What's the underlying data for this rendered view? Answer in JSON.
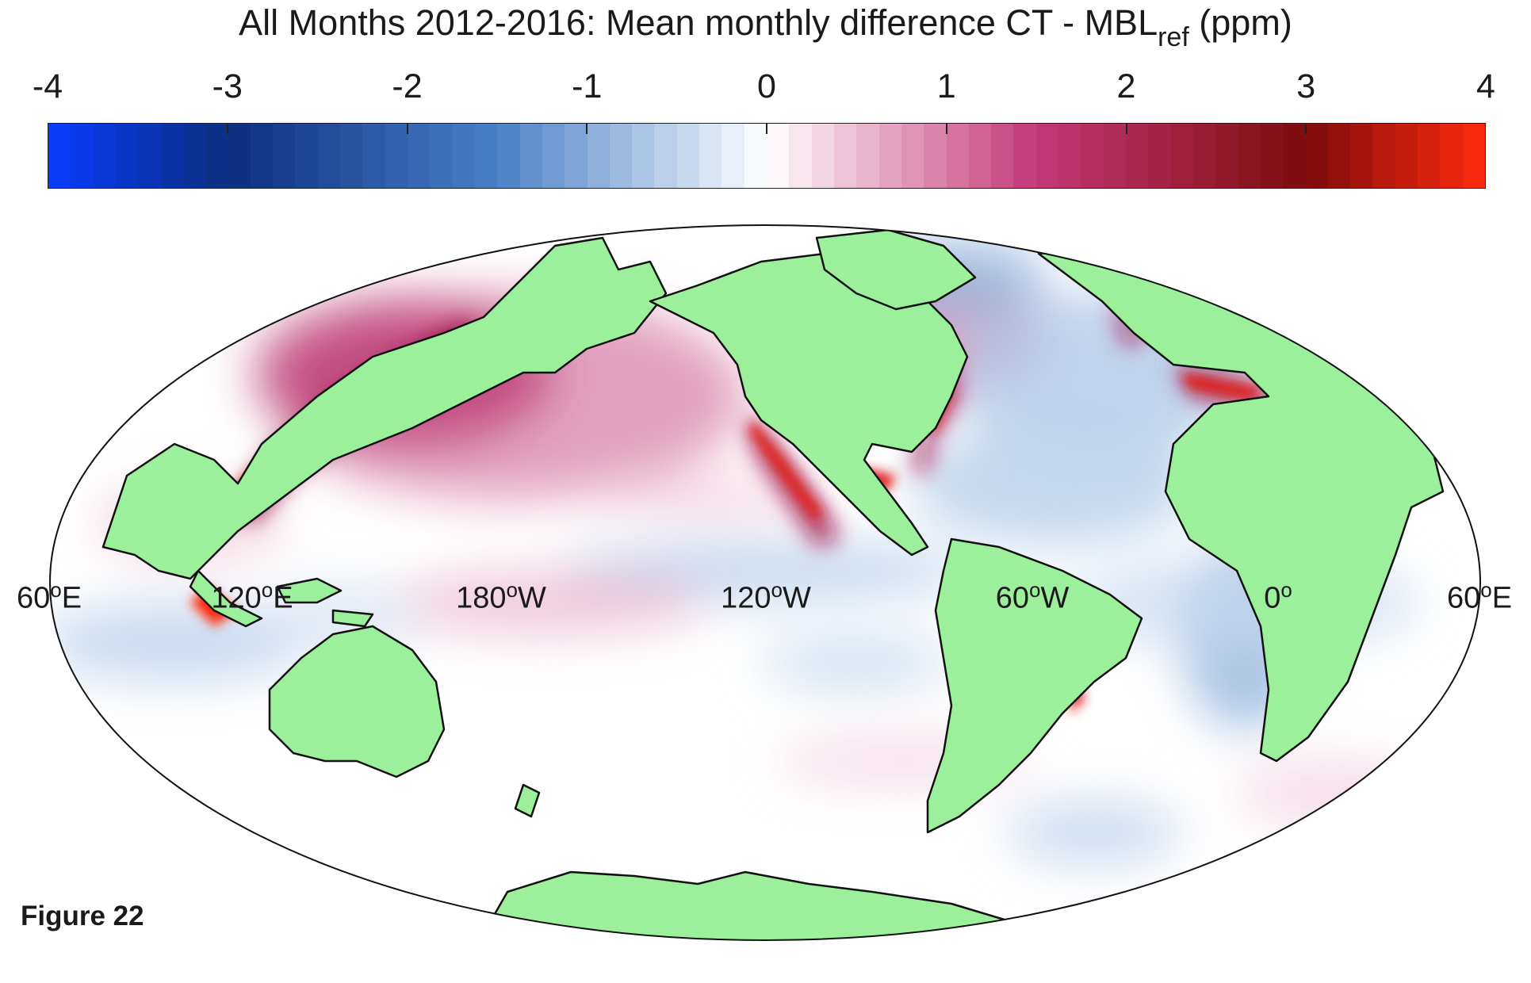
{
  "title": {
    "main": "All Months 2012-2016: Mean monthly difference CT - MBL",
    "subscript": "ref",
    "suffix": " (ppm)"
  },
  "colorbar": {
    "tick_labels": [
      "-4",
      "-3",
      "-2",
      "-1",
      "0",
      "1",
      "2",
      "3",
      "4"
    ],
    "min": -4,
    "max": 4,
    "segments": 64,
    "colors": {
      "min": "#0a3cff",
      "low": "#0b2f7d",
      "mid_neg": "#4a80c6",
      "neutral": "#ffffff",
      "mid_pos": "#c43978",
      "high": "#7d0b0b",
      "max": "#ff2a10"
    }
  },
  "map": {
    "projection": "Mollweide",
    "land_color": "#9cf09c",
    "coast_color": "#111111",
    "longitude_labels": [
      {
        "text": "60",
        "unit": "E"
      },
      {
        "text": "120",
        "unit": "E"
      },
      {
        "text": "180",
        "unit": "W"
      },
      {
        "text": "120",
        "unit": "W"
      },
      {
        "text": "60",
        "unit": "W"
      },
      {
        "text": "0",
        "unit": ""
      },
      {
        "text": "60",
        "unit": "E"
      }
    ]
  },
  "figure_label": "Figure 22"
}
